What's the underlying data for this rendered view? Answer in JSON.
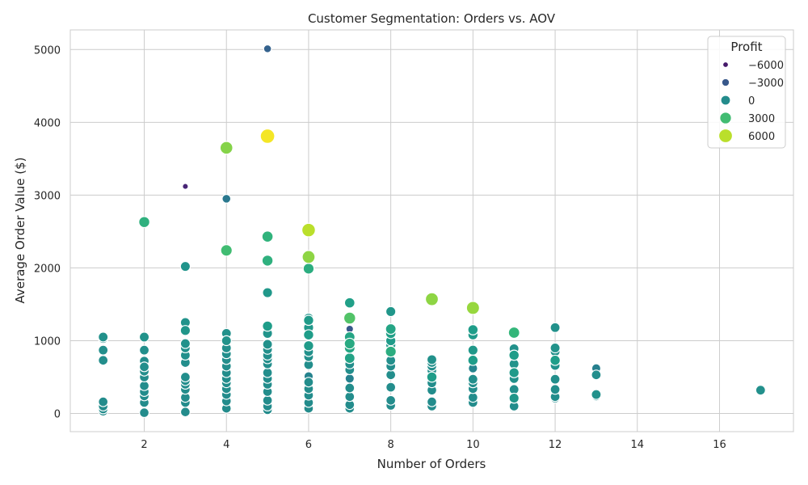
{
  "chart_data": {
    "type": "scatter",
    "title": "Customer Segmentation: Orders vs. AOV",
    "xlabel": "Number of Orders",
    "ylabel": "Average Order Value ($)",
    "xlim": [
      0.2,
      17.8
    ],
    "ylim": [
      -250,
      5270
    ],
    "xticks": [
      2,
      4,
      6,
      8,
      10,
      12,
      14,
      16
    ],
    "yticks": [
      0,
      1000,
      2000,
      3000,
      4000,
      5000
    ],
    "grid": true,
    "legend": {
      "title": "Profit",
      "placement": "top-right",
      "entries": [
        {
          "label": "−6000",
          "profit": -6000
        },
        {
          "label": "−3000",
          "profit": -3000
        },
        {
          "label": "0",
          "profit": 0
        },
        {
          "label": "3000",
          "profit": 3000
        },
        {
          "label": "6000",
          "profit": 6000
        }
      ]
    },
    "color_scale": {
      "name": "viridis",
      "domain": [
        -7000,
        7500
      ]
    },
    "size_scale": {
      "domain": [
        -7000,
        7500
      ]
    },
    "points": [
      {
        "x": 1,
        "y": 1050,
        "profit": 300
      },
      {
        "x": 1,
        "y": 1030,
        "profit": 250
      },
      {
        "x": 1,
        "y": 870,
        "profit": 200
      },
      {
        "x": 1,
        "y": 730,
        "profit": 150
      },
      {
        "x": 1,
        "y": 160,
        "profit": 40
      },
      {
        "x": 1,
        "y": 100,
        "profit": 30
      },
      {
        "x": 1,
        "y": 60,
        "profit": 20
      },
      {
        "x": 1,
        "y": 30,
        "profit": 10
      },
      {
        "x": 2,
        "y": 2630,
        "profit": 2200
      },
      {
        "x": 2,
        "y": 1050,
        "profit": 400
      },
      {
        "x": 2,
        "y": 870,
        "profit": 200
      },
      {
        "x": 2,
        "y": 720,
        "profit": 100
      },
      {
        "x": 2,
        "y": 640,
        "profit": 150
      },
      {
        "x": 2,
        "y": 580,
        "profit": 120
      },
      {
        "x": 2,
        "y": 500,
        "profit": 100
      },
      {
        "x": 2,
        "y": 380,
        "profit": 50
      },
      {
        "x": 2,
        "y": 300,
        "profit": 40
      },
      {
        "x": 2,
        "y": 240,
        "profit": 30
      },
      {
        "x": 2,
        "y": 150,
        "profit": 20
      },
      {
        "x": 2,
        "y": 10,
        "profit": 5
      },
      {
        "x": 3,
        "y": 3120,
        "profit": -5500
      },
      {
        "x": 3,
        "y": 2020,
        "profit": 500
      },
      {
        "x": 3,
        "y": 1250,
        "profit": 400
      },
      {
        "x": 3,
        "y": 1140,
        "profit": 600
      },
      {
        "x": 3,
        "y": 960,
        "profit": 300
      },
      {
        "x": 3,
        "y": 900,
        "profit": 250
      },
      {
        "x": 3,
        "y": 800,
        "profit": 200
      },
      {
        "x": 3,
        "y": 700,
        "profit": 150
      },
      {
        "x": 3,
        "y": 500,
        "profit": 120
      },
      {
        "x": 3,
        "y": 450,
        "profit": 100
      },
      {
        "x": 3,
        "y": 400,
        "profit": 80
      },
      {
        "x": 3,
        "y": 330,
        "profit": 60
      },
      {
        "x": 3,
        "y": 220,
        "profit": 40
      },
      {
        "x": 3,
        "y": 150,
        "profit": 30
      },
      {
        "x": 3,
        "y": 20,
        "profit": 5
      },
      {
        "x": 4,
        "y": 3650,
        "profit": 4800
      },
      {
        "x": 4,
        "y": 2950,
        "profit": -1200
      },
      {
        "x": 4,
        "y": 2260,
        "profit": -1500
      },
      {
        "x": 4,
        "y": 2240,
        "profit": 3000
      },
      {
        "x": 4,
        "y": 1100,
        "profit": 300
      },
      {
        "x": 4,
        "y": 1000,
        "profit": 400
      },
      {
        "x": 4,
        "y": 900,
        "profit": 250
      },
      {
        "x": 4,
        "y": 820,
        "profit": 200
      },
      {
        "x": 4,
        "y": 740,
        "profit": 150
      },
      {
        "x": 4,
        "y": 650,
        "profit": 120
      },
      {
        "x": 4,
        "y": 560,
        "profit": 100
      },
      {
        "x": 4,
        "y": 480,
        "profit": 80
      },
      {
        "x": 4,
        "y": 420,
        "profit": 70
      },
      {
        "x": 4,
        "y": 340,
        "profit": 60
      },
      {
        "x": 4,
        "y": 260,
        "profit": 40
      },
      {
        "x": 4,
        "y": 170,
        "profit": 30
      },
      {
        "x": 4,
        "y": 70,
        "profit": 10
      },
      {
        "x": 5,
        "y": 5010,
        "profit": -2500
      },
      {
        "x": 5,
        "y": 3810,
        "profit": 7300
      },
      {
        "x": 5,
        "y": 2430,
        "profit": 2400
      },
      {
        "x": 5,
        "y": 2100,
        "profit": 2200
      },
      {
        "x": 5,
        "y": 1660,
        "profit": 700
      },
      {
        "x": 5,
        "y": 1200,
        "profit": 1000
      },
      {
        "x": 5,
        "y": 1100,
        "profit": 500
      },
      {
        "x": 5,
        "y": 950,
        "profit": 300
      },
      {
        "x": 5,
        "y": 880,
        "profit": 250
      },
      {
        "x": 5,
        "y": 800,
        "profit": 200
      },
      {
        "x": 5,
        "y": 750,
        "profit": 180
      },
      {
        "x": 5,
        "y": 680,
        "profit": 160
      },
      {
        "x": 5,
        "y": 560,
        "profit": 120
      },
      {
        "x": 5,
        "y": 480,
        "profit": 100
      },
      {
        "x": 5,
        "y": 400,
        "profit": 80
      },
      {
        "x": 5,
        "y": 300,
        "profit": 60
      },
      {
        "x": 5,
        "y": 180,
        "profit": 40
      },
      {
        "x": 5,
        "y": 100,
        "profit": 20
      },
      {
        "x": 5,
        "y": 50,
        "profit": 10
      },
      {
        "x": 6,
        "y": 2520,
        "profit": 6000
      },
      {
        "x": 6,
        "y": 2150,
        "profit": 5000
      },
      {
        "x": 6,
        "y": 1990,
        "profit": 2000
      },
      {
        "x": 6,
        "y": 1310,
        "profit": 400
      },
      {
        "x": 6,
        "y": 1280,
        "profit": 900
      },
      {
        "x": 6,
        "y": 1180,
        "profit": 700
      },
      {
        "x": 6,
        "y": 1080,
        "profit": 1000
      },
      {
        "x": 6,
        "y": 930,
        "profit": 900
      },
      {
        "x": 6,
        "y": 850,
        "profit": 300
      },
      {
        "x": 6,
        "y": 780,
        "profit": 250
      },
      {
        "x": 6,
        "y": 670,
        "profit": 150
      },
      {
        "x": 6,
        "y": 510,
        "profit": -500
      },
      {
        "x": 6,
        "y": 430,
        "profit": 100
      },
      {
        "x": 6,
        "y": 340,
        "profit": 80
      },
      {
        "x": 6,
        "y": 250,
        "profit": 50
      },
      {
        "x": 6,
        "y": 150,
        "profit": 30
      },
      {
        "x": 6,
        "y": 70,
        "profit": 10
      },
      {
        "x": 7,
        "y": 1520,
        "profit": 1200
      },
      {
        "x": 7,
        "y": 1310,
        "profit": 3500
      },
      {
        "x": 7,
        "y": 1160,
        "profit": -3000
      },
      {
        "x": 7,
        "y": 1050,
        "profit": 1500
      },
      {
        "x": 7,
        "y": 960,
        "profit": 1800
      },
      {
        "x": 7,
        "y": 900,
        "profit": 1600
      },
      {
        "x": 7,
        "y": 760,
        "profit": 1400
      },
      {
        "x": 7,
        "y": 680,
        "profit": 200
      },
      {
        "x": 7,
        "y": 600,
        "profit": 150
      },
      {
        "x": 7,
        "y": 480,
        "profit": -600
      },
      {
        "x": 7,
        "y": 350,
        "profit": 100
      },
      {
        "x": 7,
        "y": 230,
        "profit": 50
      },
      {
        "x": 7,
        "y": 120,
        "profit": 30
      },
      {
        "x": 7,
        "y": 70,
        "profit": 10
      },
      {
        "x": 8,
        "y": 1400,
        "profit": 600
      },
      {
        "x": 8,
        "y": 1160,
        "profit": 1500
      },
      {
        "x": 8,
        "y": 1100,
        "profit": 1200
      },
      {
        "x": 8,
        "y": 1000,
        "profit": 900
      },
      {
        "x": 8,
        "y": 940,
        "profit": 800
      },
      {
        "x": 8,
        "y": 850,
        "profit": 2000
      },
      {
        "x": 8,
        "y": 730,
        "profit": 200
      },
      {
        "x": 8,
        "y": 650,
        "profit": 150
      },
      {
        "x": 8,
        "y": 530,
        "profit": 120
      },
      {
        "x": 8,
        "y": 360,
        "profit": 80
      },
      {
        "x": 8,
        "y": 180,
        "profit": 40
      },
      {
        "x": 8,
        "y": 110,
        "profit": 20
      },
      {
        "x": 9,
        "y": 1570,
        "profit": 5000
      },
      {
        "x": 9,
        "y": 740,
        "profit": 300
      },
      {
        "x": 9,
        "y": 700,
        "profit": 250
      },
      {
        "x": 9,
        "y": 650,
        "profit": 200
      },
      {
        "x": 9,
        "y": 590,
        "profit": 150
      },
      {
        "x": 9,
        "y": 500,
        "profit": 1000
      },
      {
        "x": 9,
        "y": 420,
        "profit": 100
      },
      {
        "x": 9,
        "y": 320,
        "profit": 80
      },
      {
        "x": 9,
        "y": 160,
        "profit": 40
      },
      {
        "x": 9,
        "y": 100,
        "profit": 20
      },
      {
        "x": 10,
        "y": 1450,
        "profit": 5200
      },
      {
        "x": 10,
        "y": 1150,
        "profit": 1000
      },
      {
        "x": 10,
        "y": 1080,
        "profit": 800
      },
      {
        "x": 10,
        "y": 870,
        "profit": 700
      },
      {
        "x": 10,
        "y": 730,
        "profit": 1000
      },
      {
        "x": 10,
        "y": 620,
        "profit": -400
      },
      {
        "x": 10,
        "y": 470,
        "profit": 200
      },
      {
        "x": 10,
        "y": 420,
        "profit": 150
      },
      {
        "x": 10,
        "y": 340,
        "profit": 100
      },
      {
        "x": 10,
        "y": 220,
        "profit": 80
      },
      {
        "x": 10,
        "y": 150,
        "profit": 40
      },
      {
        "x": 11,
        "y": 1110,
        "profit": 2600
      },
      {
        "x": 11,
        "y": 890,
        "profit": 300
      },
      {
        "x": 11,
        "y": 800,
        "profit": 1000
      },
      {
        "x": 11,
        "y": 680,
        "profit": 400
      },
      {
        "x": 11,
        "y": 560,
        "profit": 800
      },
      {
        "x": 11,
        "y": 480,
        "profit": 300
      },
      {
        "x": 11,
        "y": 330,
        "profit": 200
      },
      {
        "x": 11,
        "y": 210,
        "profit": 600
      },
      {
        "x": 11,
        "y": 100,
        "profit": 50
      },
      {
        "x": 12,
        "y": 1180,
        "profit": 300
      },
      {
        "x": 12,
        "y": 900,
        "profit": 400
      },
      {
        "x": 12,
        "y": 850,
        "profit": 350
      },
      {
        "x": 12,
        "y": 730,
        "profit": 1000
      },
      {
        "x": 12,
        "y": 660,
        "profit": 300
      },
      {
        "x": 12,
        "y": 470,
        "profit": 200
      },
      {
        "x": 12,
        "y": 330,
        "profit": 150
      },
      {
        "x": 12,
        "y": 230,
        "profit": 100
      },
      {
        "x": 12,
        "y": 210,
        "profit": 50
      },
      {
        "x": 13,
        "y": 620,
        "profit": -700
      },
      {
        "x": 13,
        "y": 530,
        "profit": 150
      },
      {
        "x": 13,
        "y": 260,
        "profit": 300
      },
      {
        "x": 13,
        "y": 240,
        "profit": 100
      },
      {
        "x": 17,
        "y": 320,
        "profit": 250
      }
    ]
  }
}
